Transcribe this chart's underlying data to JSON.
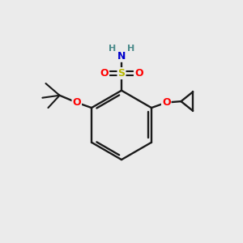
{
  "bg_color": "#ebebeb",
  "bond_color": "#1a1a1a",
  "colors": {
    "S": "#b8b800",
    "O": "#ff0000",
    "N": "#0000cc",
    "H": "#4a8a8a",
    "C": "#1a1a1a"
  },
  "figsize": [
    3.0,
    3.0
  ],
  "dpi": 100
}
